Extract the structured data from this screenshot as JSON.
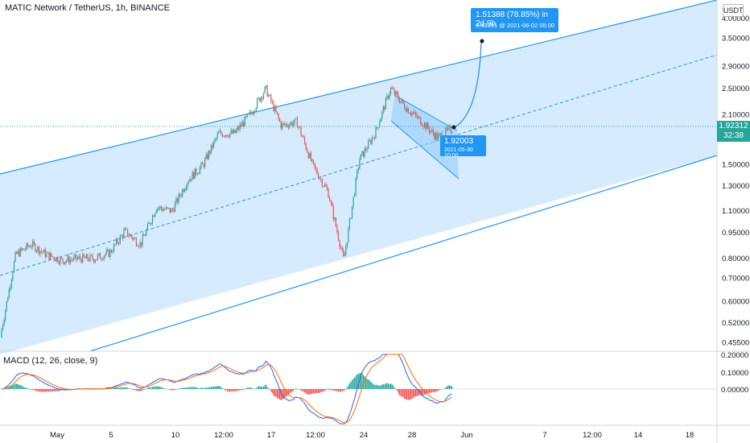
{
  "header": {
    "title": "MATIC Network / TetherUS, 1h, BINANCE",
    "currency": "USDT"
  },
  "macd": {
    "title": "MACD (12, 26, close, 9)",
    "axis_labels": [
      "0.20000",
      "0.10000",
      "0.00000"
    ]
  },
  "price_tag": {
    "value": "1.92312",
    "countdown": "32:38"
  },
  "annotations": {
    "target_line1": "1.51388 (78.85%) in 2d 9h",
    "target_line2": "3.43391 @ 2021-06-02  05:00",
    "now_value": "1.92003",
    "now_time": "2021-05-30 20:00"
  },
  "colors": {
    "up": "#26a69a",
    "down": "#ef5350",
    "channel": "#2196f3",
    "channel_fill": "#bbdefb",
    "macd_line": "#2962ff",
    "signal_line": "#ff6d00"
  },
  "chart_data": {
    "type": "candlestick",
    "scale": "log",
    "y_ticks": [
      "4.00000",
      "3.50000",
      "2.90000",
      "2.50000",
      "2.10000",
      "1.50000",
      "1.30000",
      "1.10000",
      "0.95000",
      "0.80000",
      "0.70000",
      "0.60000",
      "0.52000",
      "0.45500"
    ],
    "x_ticks": [
      "May",
      "5",
      "10",
      "12:00",
      "17",
      "12:00",
      "24",
      "28",
      "Jun",
      "7",
      "12:00",
      "14",
      "18"
    ],
    "price_path": [
      [
        "2021-05-01",
        0.47
      ],
      [
        "2021-05-02",
        0.82
      ],
      [
        "2021-05-03",
        0.88
      ],
      [
        "2021-05-04",
        0.82
      ],
      [
        "2021-05-05",
        0.79
      ],
      [
        "2021-05-06",
        0.8
      ],
      [
        "2021-05-07",
        0.8
      ],
      [
        "2021-05-08",
        0.83
      ],
      [
        "2021-05-09",
        0.96
      ],
      [
        "2021-05-10",
        0.88
      ],
      [
        "2021-05-11",
        1.13
      ],
      [
        "2021-05-12",
        1.1
      ],
      [
        "2021-05-13",
        1.35
      ],
      [
        "2021-05-14",
        1.5
      ],
      [
        "2021-05-15",
        1.85
      ],
      [
        "2021-05-16",
        1.85
      ],
      [
        "2021-05-17",
        2.1
      ],
      [
        "2021-05-18",
        2.5
      ],
      [
        "2021-05-19",
        1.95
      ],
      [
        "2021-05-20",
        2.0
      ],
      [
        "2021-05-21",
        1.5
      ],
      [
        "2021-05-22",
        1.25
      ],
      [
        "2021-05-23",
        0.79
      ],
      [
        "2021-05-24",
        1.55
      ],
      [
        "2021-05-25",
        1.85
      ],
      [
        "2021-05-26",
        2.5
      ],
      [
        "2021-05-27",
        2.2
      ],
      [
        "2021-05-28",
        2.0
      ],
      [
        "2021-05-29",
        1.8
      ],
      [
        "2021-05-30",
        1.92
      ]
    ],
    "last_price": 1.92312,
    "projection": {
      "from": 1.92003,
      "from_time": "2021-05-30 20:00",
      "to": 3.43391,
      "to_time": "2021-06-02 05:00",
      "change": "1.51388 (78.85%)",
      "duration": "2d 9h"
    }
  }
}
